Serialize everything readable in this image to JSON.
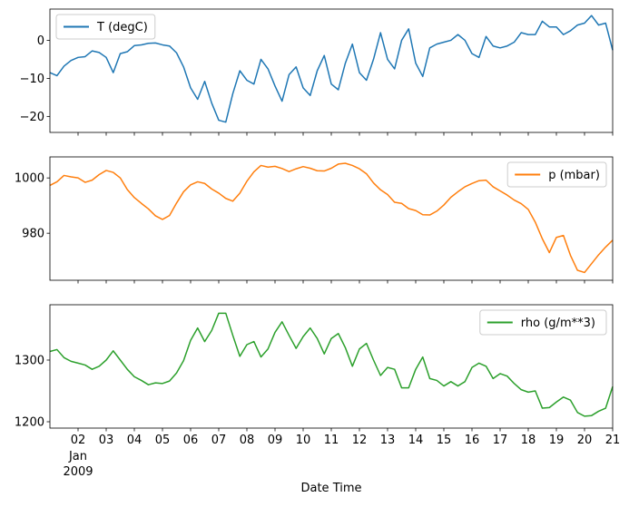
{
  "chart_data": [
    {
      "type": "line",
      "series": [
        {
          "name": "T (degC)",
          "color": "#1f77b4",
          "values": [
            -8.5,
            -9.3,
            -6.8,
            -5.3,
            -4.5,
            -4.3,
            -2.8,
            -3.2,
            -4.5,
            -8.5,
            -3.5,
            -3,
            -1.4,
            -1.2,
            -0.8,
            -0.7,
            -1.2,
            -1.5,
            -3.3,
            -7,
            -12.5,
            -15.5,
            -10.8,
            -16.5,
            -21,
            -21.5,
            -14,
            -8,
            -10.5,
            -11.5,
            -5,
            -7.5,
            -12,
            -16,
            -9,
            -7,
            -12.5,
            -14.5,
            -8,
            -4,
            -11.5,
            -13,
            -6,
            -1,
            -8.5,
            -10.5,
            -5,
            2,
            -5,
            -7.5,
            0,
            3,
            -6,
            -9.5,
            -2,
            -1,
            -0.5,
            0,
            1.5,
            0,
            -3.5,
            -4.5,
            1,
            -1.5,
            -2,
            -1.5,
            -0.5,
            2,
            1.5,
            1.5,
            5,
            3.5,
            3.5,
            1.5,
            2.5,
            4,
            4.5,
            6.5,
            4,
            4.5,
            -2.6
          ]
        }
      ],
      "yticks": [
        0,
        -10,
        -20
      ],
      "ytick_labels": [
        "0",
        "−10",
        "−20"
      ],
      "ylim": [
        -24.2,
        8.2
      ],
      "legend": "upper-left"
    },
    {
      "type": "line",
      "series": [
        {
          "name": "p (mbar)",
          "color": "#ff7f0e",
          "values": [
            997.3,
            998.6,
            1000.9,
            1000.4,
            1000,
            998.4,
            999.2,
            1001.2,
            1002.7,
            1002,
            1000,
            995.8,
            992.9,
            990.8,
            988.8,
            986.3,
            985,
            986.4,
            990.9,
            995,
            997.5,
            998.6,
            998,
            996,
            994.5,
            992.6,
            991.6,
            994.5,
            998.8,
            1002.2,
            1004.5,
            1003.9,
            1004.2,
            1003.4,
            1002.3,
            1003.3,
            1004.1,
            1003.5,
            1002.6,
            1002.5,
            1003.5,
            1005,
            1005.3,
            1004.5,
            1003.3,
            1001.5,
            998.2,
            995.7,
            994,
            991.2,
            990.8,
            988.9,
            988.2,
            986.7,
            986.6,
            988,
            990.2,
            993,
            995,
            996.8,
            998,
            999,
            999.2,
            996.8,
            995.3,
            993.8,
            992,
            990.7,
            988.6,
            984,
            978,
            973,
            978.5,
            979.2,
            972,
            966.6,
            965.8,
            969,
            972.2,
            975,
            977.5
          ]
        }
      ],
      "yticks": [
        1000,
        980
      ],
      "ytick_labels": [
        "1000",
        "980"
      ],
      "ylim": [
        963.0,
        1007.6
      ],
      "legend": "upper-right"
    },
    {
      "type": "line",
      "series": [
        {
          "name": "rho (g/m**3)",
          "color": "#2ca02c",
          "values": [
            1314,
            1317,
            1304,
            1298,
            1295,
            1292,
            1285,
            1290,
            1300,
            1315,
            1300,
            1285,
            1273,
            1267,
            1260,
            1263,
            1262,
            1266,
            1279,
            1299,
            1332,
            1352,
            1330,
            1348,
            1376,
            1376,
            1340,
            1306,
            1325,
            1330,
            1305,
            1318,
            1345,
            1362,
            1340,
            1319,
            1338,
            1352,
            1335,
            1310,
            1335,
            1343,
            1320,
            1290,
            1318,
            1327,
            1300,
            1275,
            1288,
            1285,
            1255,
            1255,
            1285,
            1305,
            1270,
            1267,
            1258,
            1265,
            1258,
            1265,
            1288,
            1295,
            1290,
            1270,
            1278,
            1274,
            1262,
            1252,
            1248,
            1250,
            1222,
            1223,
            1232,
            1240,
            1235,
            1215,
            1209,
            1210,
            1217,
            1222,
            1257
          ]
        }
      ],
      "yticks": [
        1300,
        1200
      ],
      "ytick_labels": [
        "1300",
        "1200"
      ],
      "ylim": [
        1189.7,
        1389.7
      ],
      "legend": "upper-right"
    }
  ],
  "shared_x": {
    "xlabel": "Date Time",
    "xlim": [
      "2009-01-01 00:00",
      "2009-01-21 00:00"
    ],
    "x": [
      "2009-01-01 00:00",
      "2009-01-01 06:00",
      "2009-01-01 12:00",
      "2009-01-01 18:00",
      "2009-01-02 00:00",
      "2009-01-02 06:00",
      "2009-01-02 12:00",
      "2009-01-02 18:00",
      "2009-01-03 00:00",
      "2009-01-03 06:00",
      "2009-01-03 12:00",
      "2009-01-03 18:00",
      "2009-01-04 00:00",
      "2009-01-04 06:00",
      "2009-01-04 12:00",
      "2009-01-04 18:00",
      "2009-01-05 00:00",
      "2009-01-05 06:00",
      "2009-01-05 12:00",
      "2009-01-05 18:00",
      "2009-01-06 00:00",
      "2009-01-06 06:00",
      "2009-01-06 12:00",
      "2009-01-06 18:00",
      "2009-01-07 00:00",
      "2009-01-07 06:00",
      "2009-01-07 12:00",
      "2009-01-07 18:00",
      "2009-01-08 00:00",
      "2009-01-08 06:00",
      "2009-01-08 12:00",
      "2009-01-08 18:00",
      "2009-01-09 00:00",
      "2009-01-09 06:00",
      "2009-01-09 12:00",
      "2009-01-09 18:00",
      "2009-01-10 00:00",
      "2009-01-10 06:00",
      "2009-01-10 12:00",
      "2009-01-10 18:00",
      "2009-01-11 00:00",
      "2009-01-11 06:00",
      "2009-01-11 12:00",
      "2009-01-11 18:00",
      "2009-01-12 00:00",
      "2009-01-12 06:00",
      "2009-01-12 12:00",
      "2009-01-12 18:00",
      "2009-01-13 00:00",
      "2009-01-13 06:00",
      "2009-01-13 12:00",
      "2009-01-13 18:00",
      "2009-01-14 00:00",
      "2009-01-14 06:00",
      "2009-01-14 12:00",
      "2009-01-14 18:00",
      "2009-01-15 00:00",
      "2009-01-15 06:00",
      "2009-01-15 12:00",
      "2009-01-15 18:00",
      "2009-01-16 00:00",
      "2009-01-16 06:00",
      "2009-01-16 12:00",
      "2009-01-16 18:00",
      "2009-01-17 00:00",
      "2009-01-17 06:00",
      "2009-01-17 12:00",
      "2009-01-17 18:00",
      "2009-01-18 00:00",
      "2009-01-18 06:00",
      "2009-01-18 12:00",
      "2009-01-18 18:00",
      "2009-01-19 00:00",
      "2009-01-19 06:00",
      "2009-01-19 12:00",
      "2009-01-19 18:00",
      "2009-01-20 00:00",
      "2009-01-20 06:00",
      "2009-01-20 12:00",
      "2009-01-20 18:00",
      "2009-01-21 00:00"
    ],
    "ticks": [
      "2009-01-02",
      "2009-01-03",
      "2009-01-04",
      "2009-01-05",
      "2009-01-06",
      "2009-01-07",
      "2009-01-08",
      "2009-01-09",
      "2009-01-10",
      "2009-01-11",
      "2009-01-12",
      "2009-01-13",
      "2009-01-14",
      "2009-01-15",
      "2009-01-16",
      "2009-01-17",
      "2009-01-18",
      "2009-01-19",
      "2009-01-20",
      "2009-01-21"
    ],
    "tick_labels": [
      "02",
      "03",
      "04",
      "05",
      "06",
      "07",
      "08",
      "09",
      "10",
      "11",
      "12",
      "13",
      "14",
      "15",
      "16",
      "17",
      "18",
      "19",
      "20",
      "21"
    ],
    "first_tick_month": "Jan",
    "first_tick_year": "2009"
  }
}
